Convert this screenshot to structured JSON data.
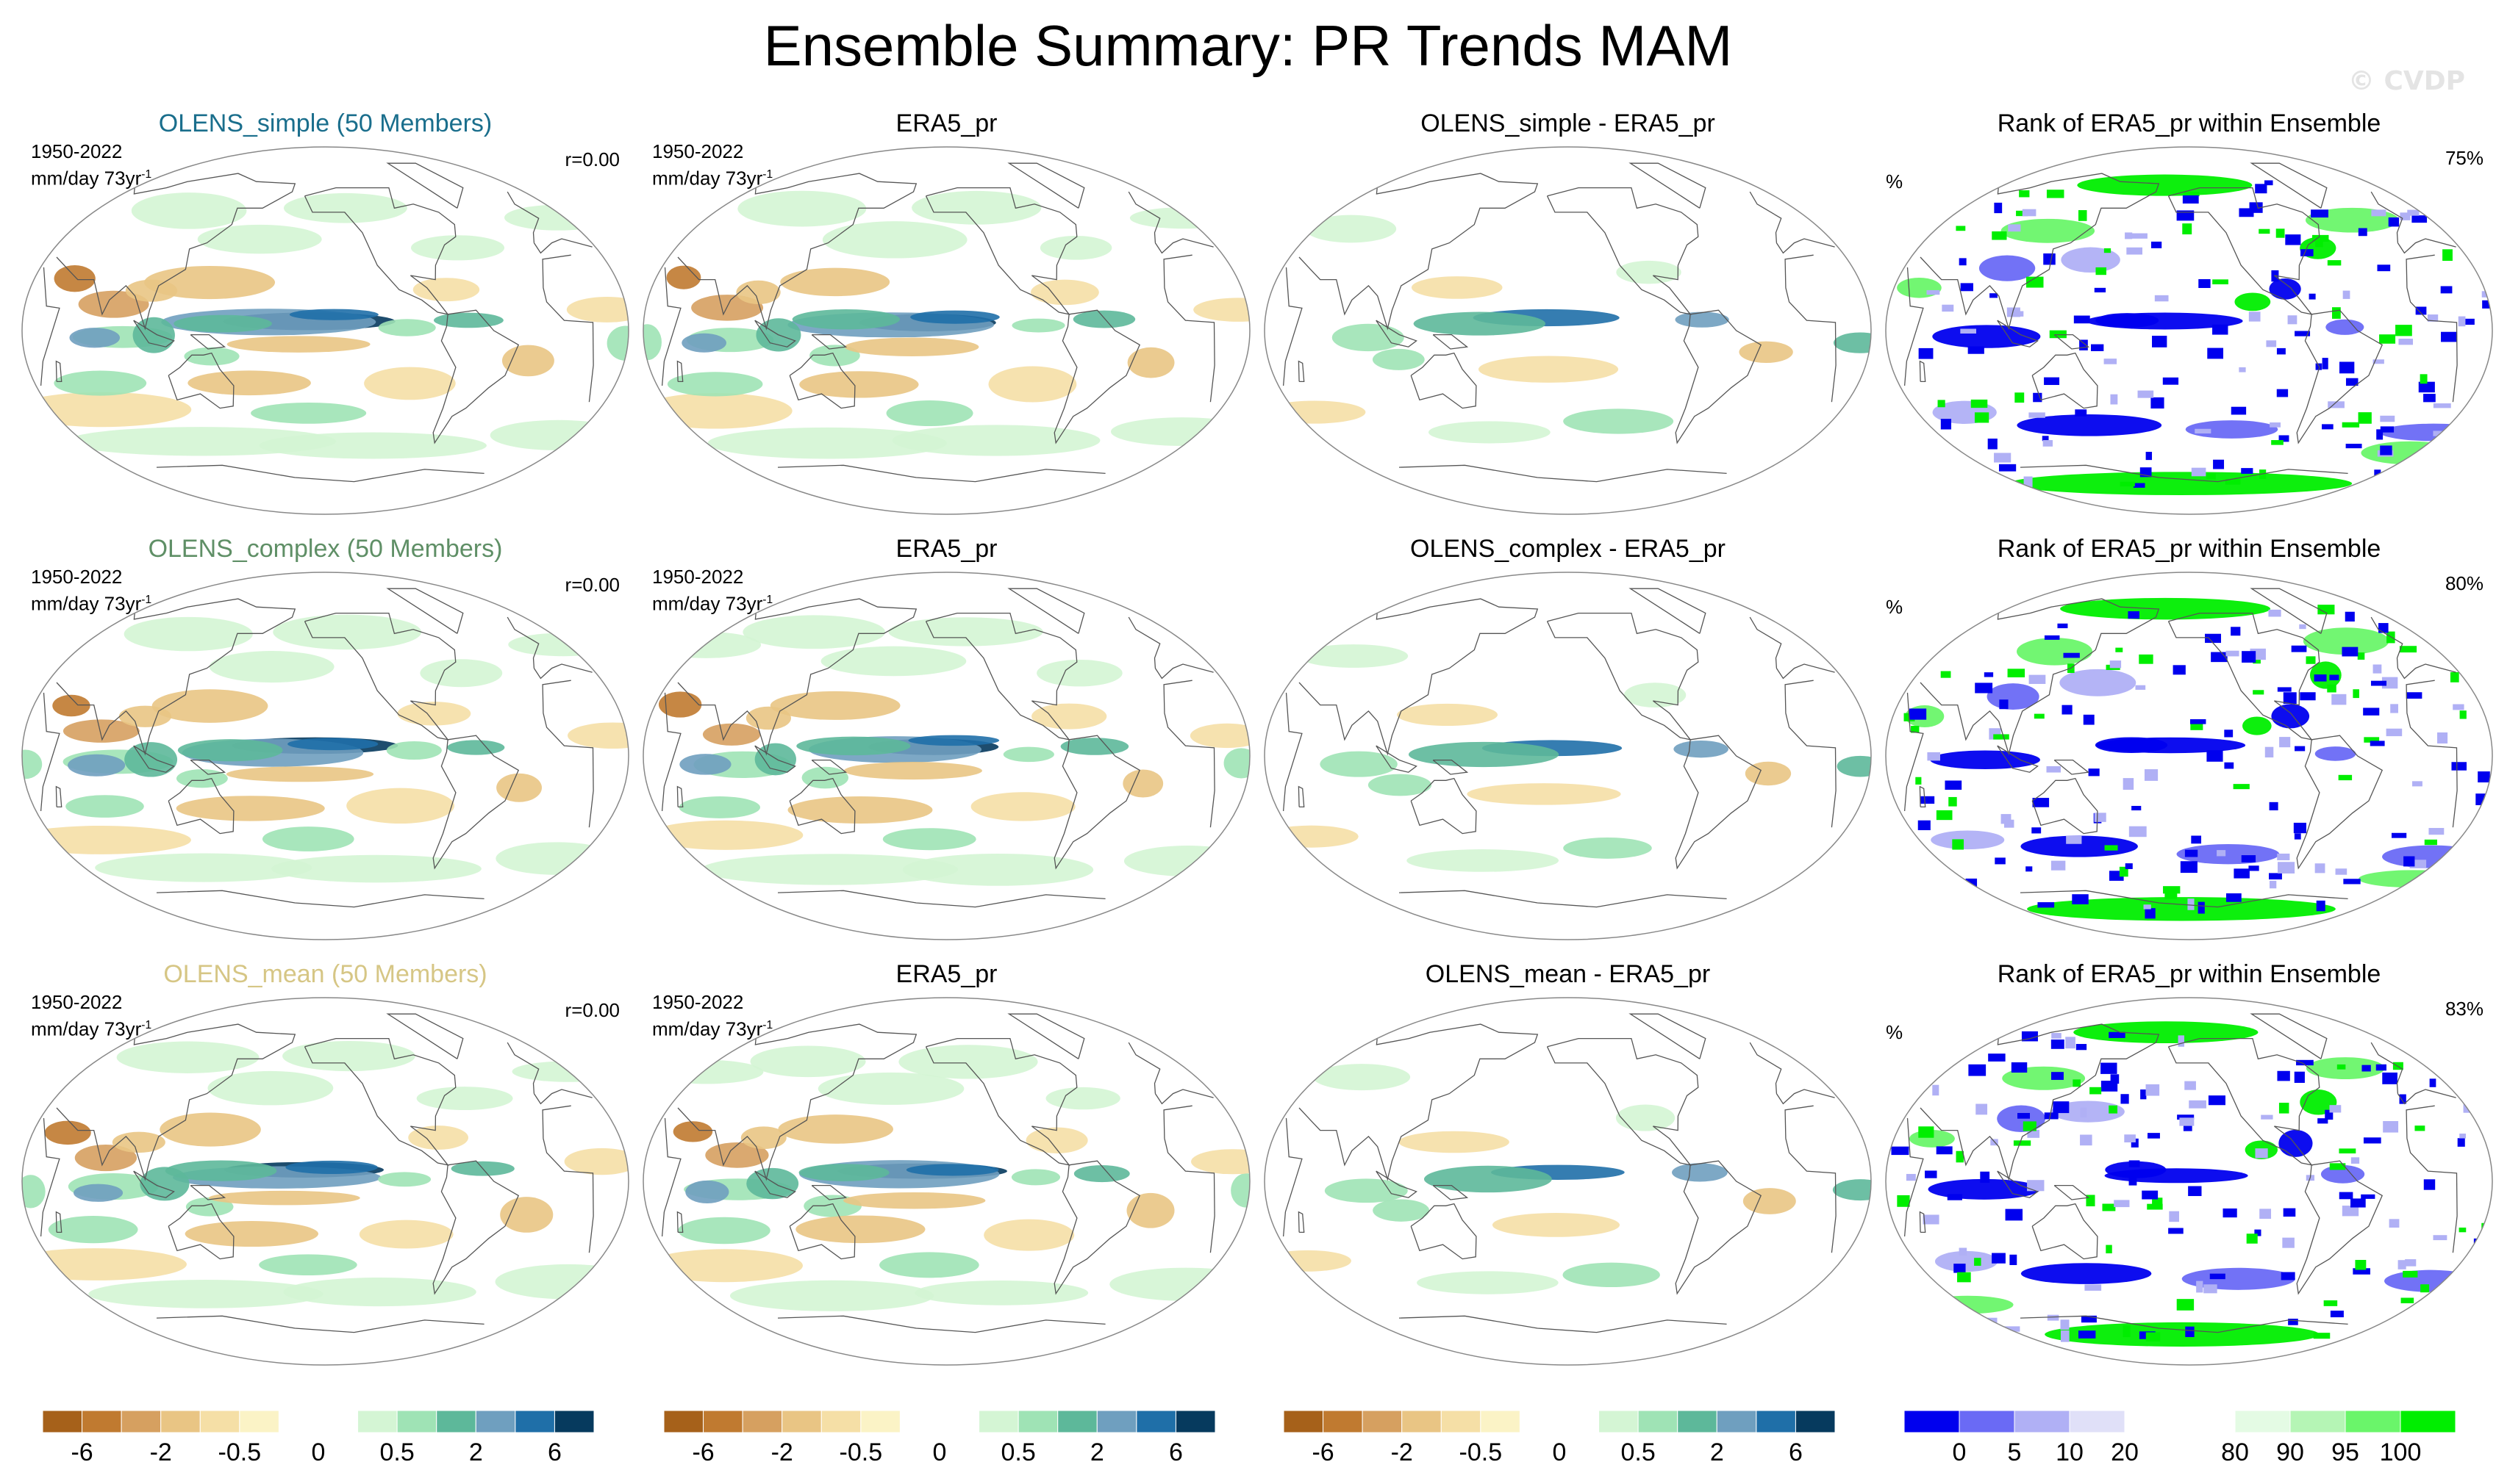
{
  "title": "Ensemble Summary: PR Trends MAM",
  "watermark": "© CVDP",
  "rows": [
    {
      "ensemble": {
        "title": "OLENS_simple (50 Members)",
        "title_color": "#1a6e8c",
        "period": "1950-2022",
        "units": "mm/day 73yr",
        "units_sup": "-1",
        "corr": "r=0.00"
      },
      "obs": {
        "title": "ERA5_pr",
        "period": "1950-2022",
        "units": "mm/day 73yr",
        "units_sup": "-1"
      },
      "diff": {
        "title": "OLENS_simple - ERA5_pr"
      },
      "rank": {
        "title": "Rank of ERA5_pr within Ensemble",
        "pct": "%",
        "score": "75%"
      }
    },
    {
      "ensemble": {
        "title": "OLENS_complex (50 Members)",
        "title_color": "#5f8f66",
        "period": "1950-2022",
        "units": "mm/day 73yr",
        "units_sup": "-1",
        "corr": "r=0.00"
      },
      "obs": {
        "title": "ERA5_pr",
        "period": "1950-2022",
        "units": "mm/day 73yr",
        "units_sup": "-1"
      },
      "diff": {
        "title": "OLENS_complex - ERA5_pr"
      },
      "rank": {
        "title": "Rank of ERA5_pr within Ensemble",
        "pct": "%",
        "score": "80%"
      }
    },
    {
      "ensemble": {
        "title": "OLENS_mean (50 Members)",
        "title_color": "#d6c685",
        "period": "1950-2022",
        "units": "mm/day 73yr",
        "units_sup": "-1",
        "corr": "r=0.00"
      },
      "obs": {
        "title": "ERA5_pr",
        "period": "1950-2022",
        "units": "mm/day 73yr",
        "units_sup": "-1"
      },
      "diff": {
        "title": "OLENS_mean - ERA5_pr"
      },
      "rank": {
        "title": "Rank of ERA5_pr within Ensemble",
        "pct": "%",
        "score": "83%"
      }
    }
  ],
  "trend_colorbar": {
    "colors": [
      "#a6611a",
      "#c07a30",
      "#d6a060",
      "#e9c584",
      "#f5dfa6",
      "#fbf3c6",
      "#ffffff",
      "#ffffff",
      "#d4f5d4",
      "#9fe3b5",
      "#5db89a",
      "#6f9fbf",
      "#1f6fa8",
      "#063a5e"
    ],
    "labels": [
      "-6",
      "-2",
      "-0.5",
      "0",
      "0.5",
      "2",
      "6"
    ]
  },
  "rank_colorbar": {
    "colors": [
      "#0000ee",
      "#6a6af5",
      "#b0b0f5",
      "#e0e0f8",
      "#ffffff",
      "#ffffff",
      "#e4fbe4",
      "#b5f5b5",
      "#6af56a",
      "#00ee00"
    ],
    "labels": [
      "0",
      "5",
      "10",
      "20",
      "80",
      "90",
      "95",
      "100"
    ]
  }
}
